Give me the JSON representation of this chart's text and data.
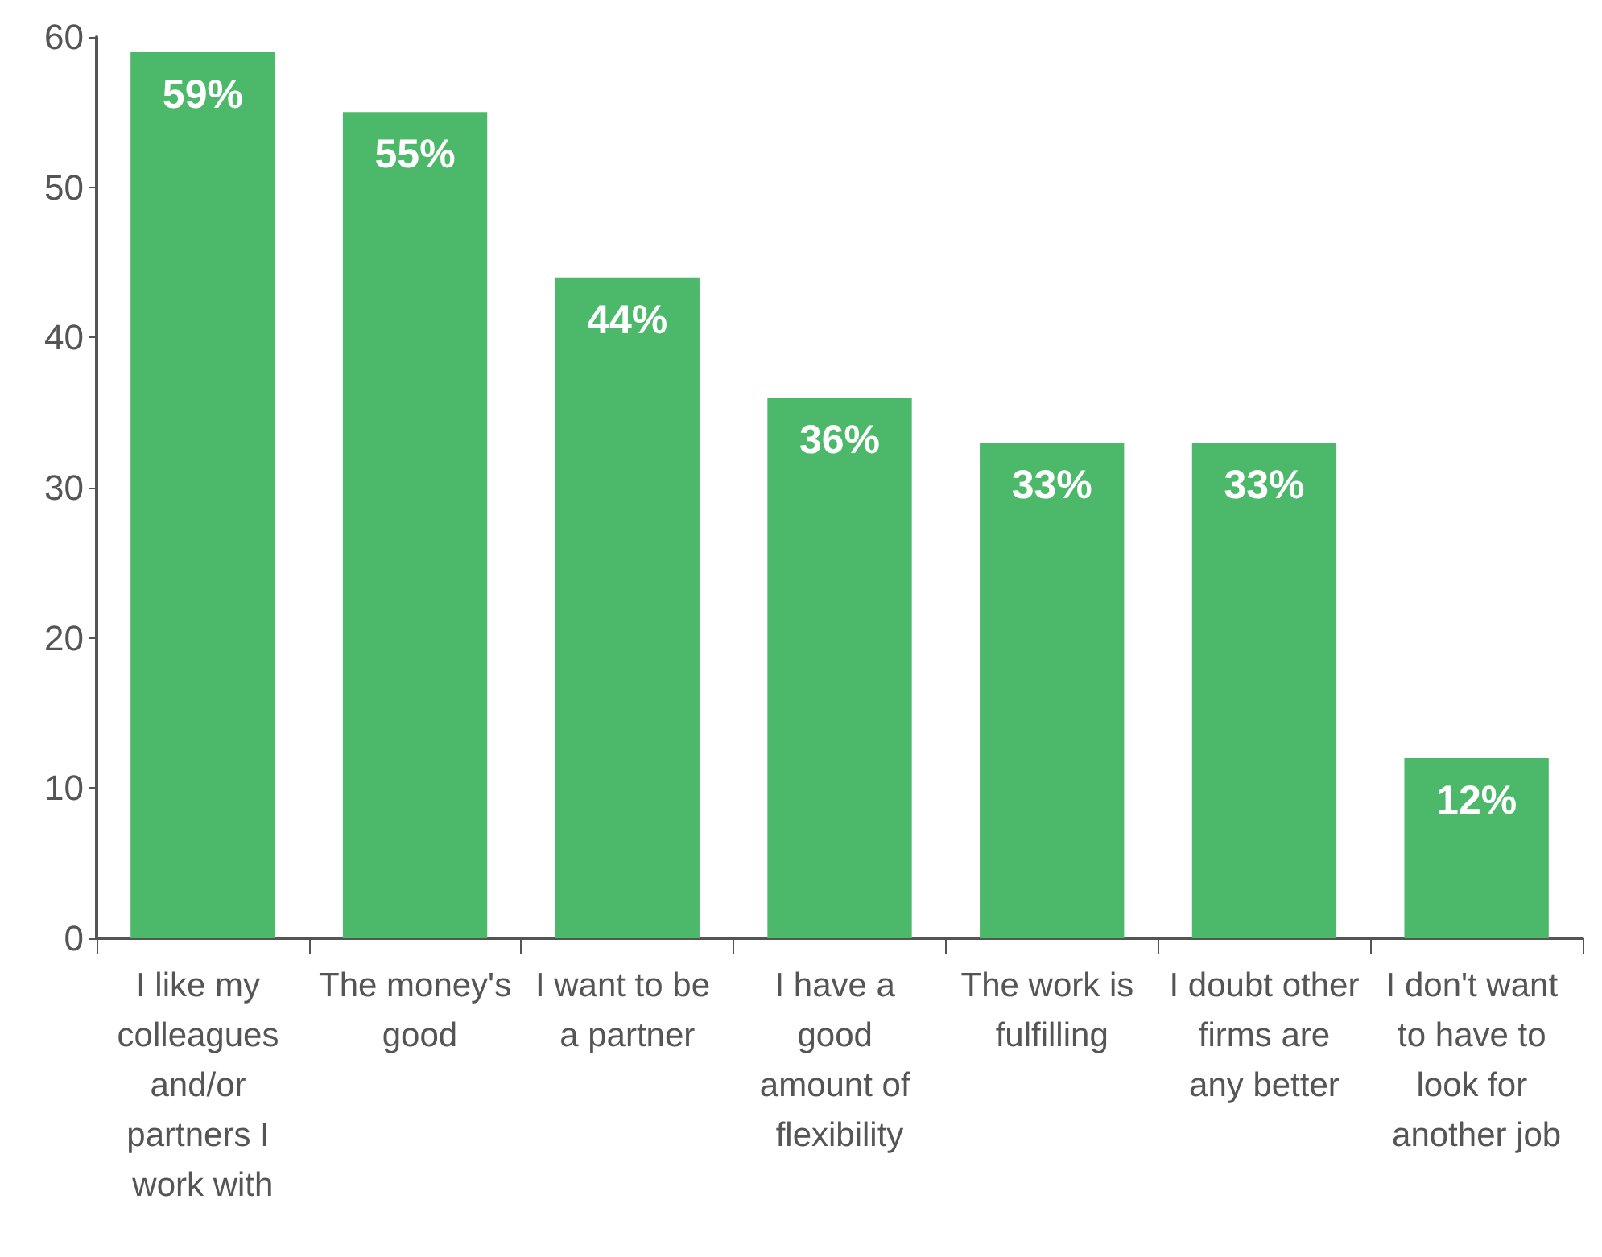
{
  "chart_data": {
    "type": "bar",
    "categories": [
      "I like my colleagues and/or partners I work with",
      "The money's good",
      "I want to be a partner",
      "I have a good amount of flexibility",
      "The work is fulfilling",
      "I doubt other firms are any better",
      "I don't want to have to look for another job"
    ],
    "values": [
      59,
      55,
      44,
      36,
      33,
      33,
      12
    ],
    "value_labels": [
      "59%",
      "55%",
      "44%",
      "36%",
      "33%",
      "33%",
      "12%"
    ],
    "color": "#4cb96a",
    "ylim": [
      0,
      60
    ],
    "yticks": [
      0,
      10,
      20,
      30,
      40,
      50,
      60
    ]
  }
}
